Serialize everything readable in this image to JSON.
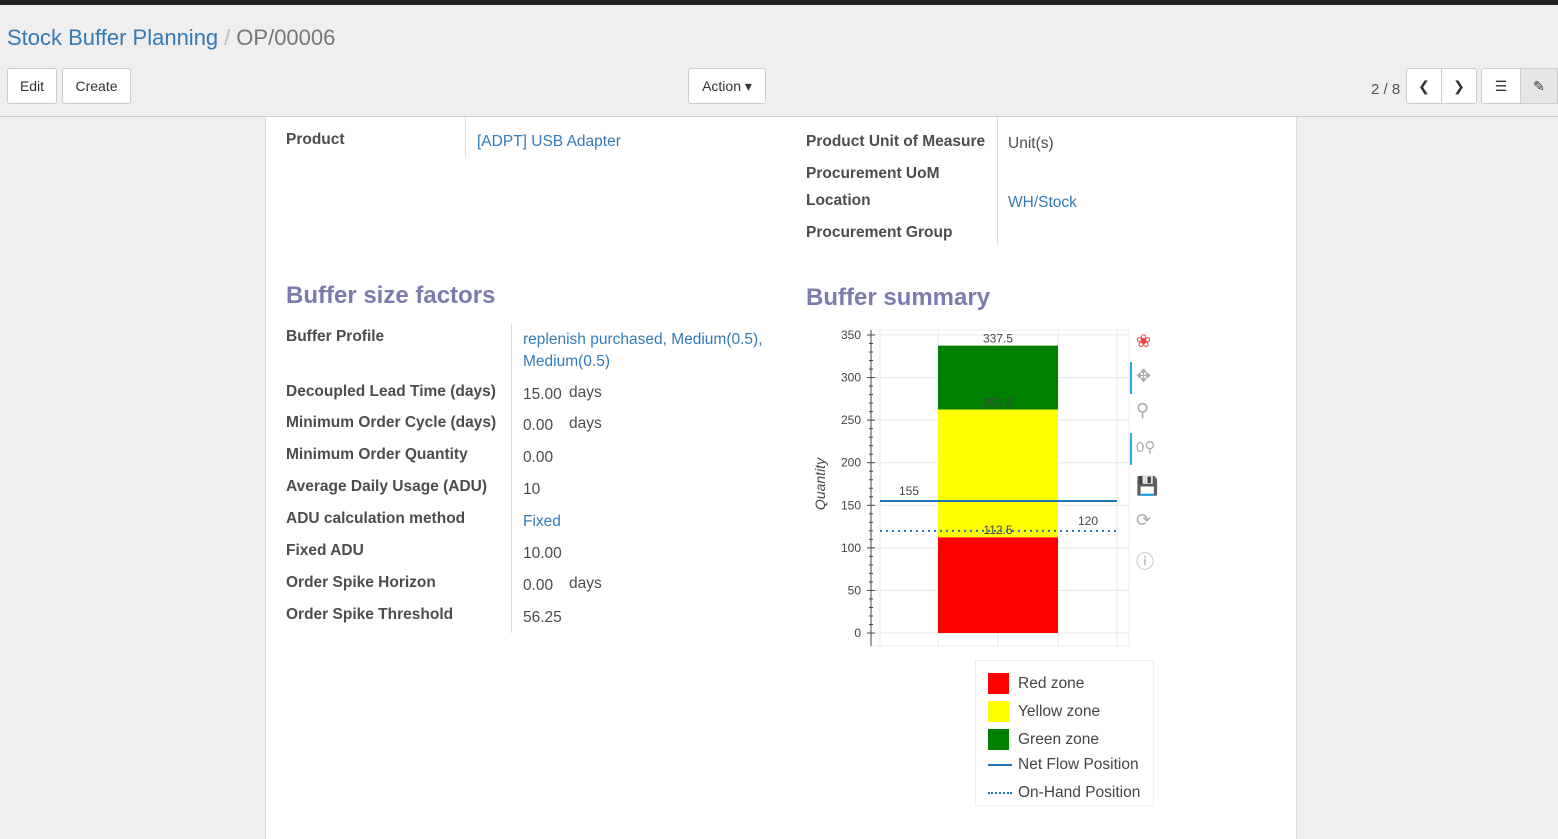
{
  "breadcrumb": {
    "parent": "Stock Buffer Planning",
    "current": "OP/00006"
  },
  "toolbar": {
    "edit": "Edit",
    "create": "Create",
    "action": "Action ▾",
    "pager": "2 / 8"
  },
  "form": {
    "product_label": "Product",
    "product": "[ADPT] USB Adapter",
    "uom_label": "Product Unit of Measure",
    "uom": "Unit(s)",
    "proc_uom_label": "Procurement UoM",
    "location_label": "Location",
    "location": "WH/Stock",
    "proc_group_label": "Procurement Group"
  },
  "factors": {
    "title": "Buffer size factors",
    "rows": [
      {
        "label": "Buffer Profile",
        "value": "replenish purchased, Medium(0.5),",
        "value2": "Medium(0.5)"
      },
      {
        "label": "Decoupled Lead Time (days)",
        "value": "15.00",
        "unit": "days"
      },
      {
        "label": "Minimum Order Cycle (days)",
        "value": "0.00",
        "unit": "days"
      },
      {
        "label": "Minimum Order Quantity",
        "value": "0.00"
      },
      {
        "label": "Average Daily Usage (ADU)",
        "value": "10"
      },
      {
        "label": "ADU calculation method",
        "value": "Fixed"
      },
      {
        "label": "Fixed ADU",
        "value": "10.00"
      },
      {
        "label": "Order Spike Horizon",
        "value": "0.00",
        "unit": "days"
      },
      {
        "label": "Order Spike Threshold",
        "value": "56.25"
      }
    ]
  },
  "summary": {
    "title": "Buffer summary"
  },
  "chart_data": {
    "type": "bar",
    "stacked": true,
    "ylabel": "Quantity",
    "ylim": [
      0,
      350
    ],
    "yticks": [
      "0",
      "50",
      "100",
      "150",
      "200",
      "250",
      "300",
      "350"
    ],
    "grid": true,
    "series": [
      {
        "name": "Red zone",
        "from": 0,
        "to": 112.5,
        "color": "#ff0000",
        "label": "112.5"
      },
      {
        "name": "Yellow zone",
        "from": 112.5,
        "to": 262.5,
        "color": "#ffff00",
        "label": "262.5"
      },
      {
        "name": "Green zone",
        "from": 262.5,
        "to": 337.5,
        "color": "#008000",
        "label": "337.5"
      }
    ],
    "lines": [
      {
        "name": "Net Flow Position",
        "value": 155,
        "label": "155",
        "style": "solid",
        "color": "#1f77b4"
      },
      {
        "name": "On-Hand Position",
        "value": 120,
        "label": "120",
        "style": "dotted",
        "color": "#1f77b4"
      }
    ],
    "legend": "bottom"
  }
}
